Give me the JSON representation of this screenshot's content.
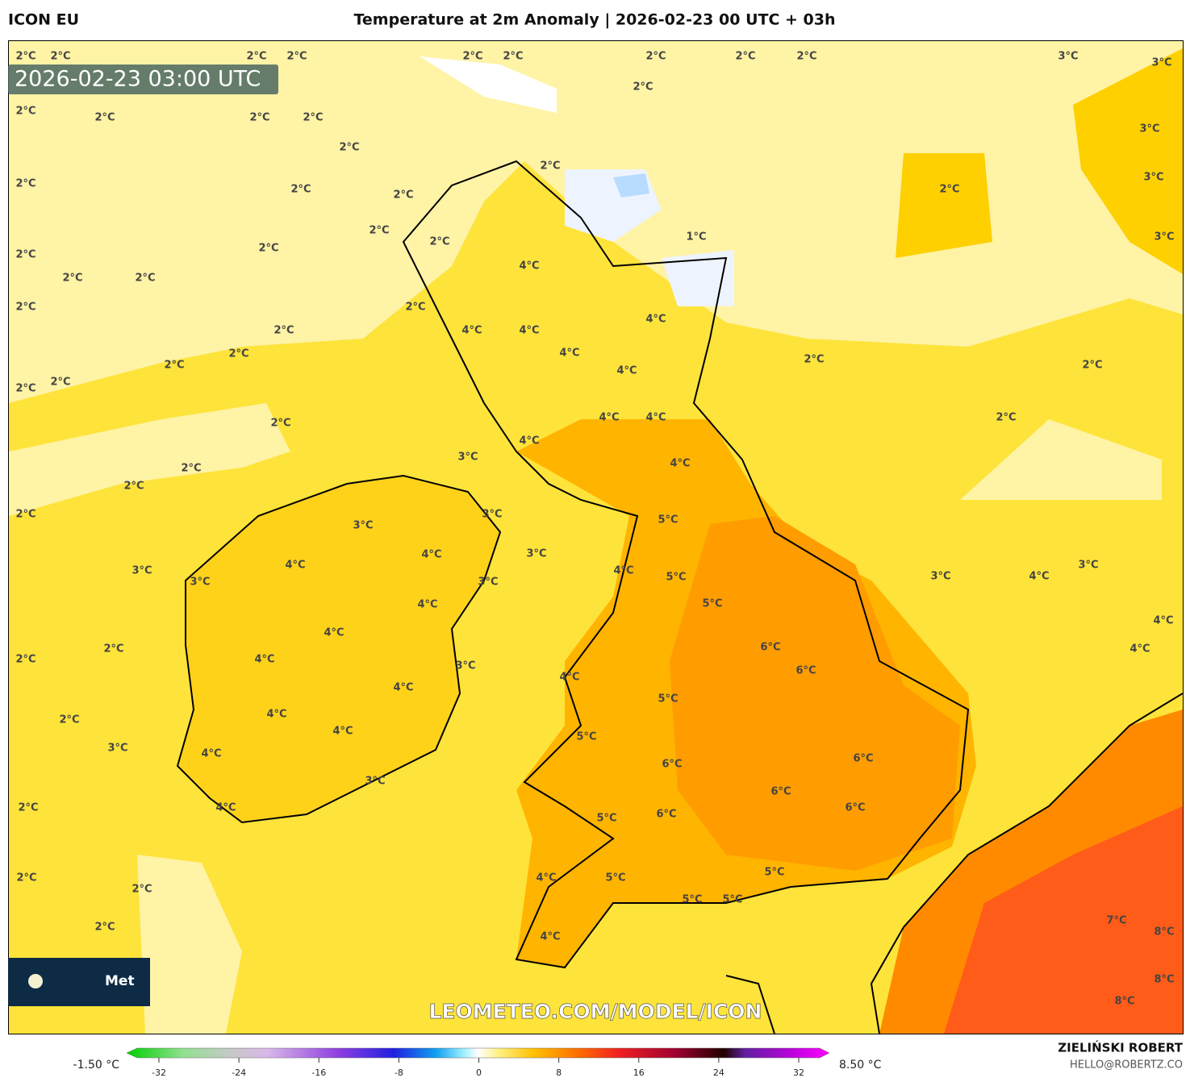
{
  "header": {
    "model": "ICON EU",
    "title": "Temperature at 2m Anomaly | 2026-02-23 00 UTC + 03h",
    "timestamp": "2026-02-23 03:00 UTC"
  },
  "logo_text": "Met",
  "watermark": "LEOMETEO.COM/MODEL/ICON",
  "colorbar": {
    "min_label": "-1.50 °C",
    "max_label": "8.50 °C",
    "xlim": [
      -32,
      32
    ],
    "ticks": [
      -32,
      -24,
      -16,
      -8,
      0,
      8,
      16,
      24,
      32
    ]
  },
  "footer": {
    "author": "ZIELIŃSKI ROBERT",
    "contact": "HELLO@ROBERTZ.CO"
  },
  "map": {
    "labels": [
      "2°C",
      "2°C",
      "2°C",
      "2°C",
      "2°C",
      "2°C",
      "2°C",
      "2°C",
      "2°C",
      "3°C",
      "3°C",
      "2°C",
      "2°C",
      "2°C",
      "2°C",
      "2°C",
      "3°C",
      "2°C",
      "2°C",
      "3°C",
      "2°C",
      "2°C",
      "2°C",
      "2°C",
      "2°C",
      "1°C",
      "3°C",
      "2°C",
      "2°C",
      "2°C",
      "4°C",
      "2°C",
      "2°C",
      "2°C",
      "2°C",
      "4°C",
      "2°C",
      "4°C",
      "4°C",
      "4°C",
      "2°C",
      "2°C",
      "2°C",
      "2°C",
      "4°C",
      "2°C",
      "2°C",
      "4°C",
      "4°C",
      "2°C",
      "2°C",
      "4°C",
      "3°C",
      "4°C",
      "2°C",
      "2°C",
      "2°C",
      "3°C",
      "5°C",
      "3°C",
      "4°C",
      "3°C",
      "4°C",
      "3°C",
      "3°C",
      "4°C",
      "3°C",
      "5°C",
      "4°C",
      "3°C",
      "3°C",
      "4°C",
      "5°C",
      "4°C",
      "4°C",
      "6°C",
      "2°C",
      "4°C",
      "2°C",
      "4°C",
      "3°C",
      "6°C",
      "4°C",
      "4°C",
      "5°C",
      "4°C",
      "2°C",
      "4°C",
      "5°C",
      "3°C",
      "4°C",
      "6°C",
      "6°C",
      "3°C",
      "6°C",
      "2°C",
      "4°C",
      "6°C",
      "6°C",
      "5°C",
      "5°C",
      "2°C",
      "4°C",
      "5°C",
      "2°C",
      "5°C",
      "5°C",
      "7°C",
      "2°C",
      "4°C",
      "8°C",
      "8°C",
      "8°C"
    ]
  }
}
